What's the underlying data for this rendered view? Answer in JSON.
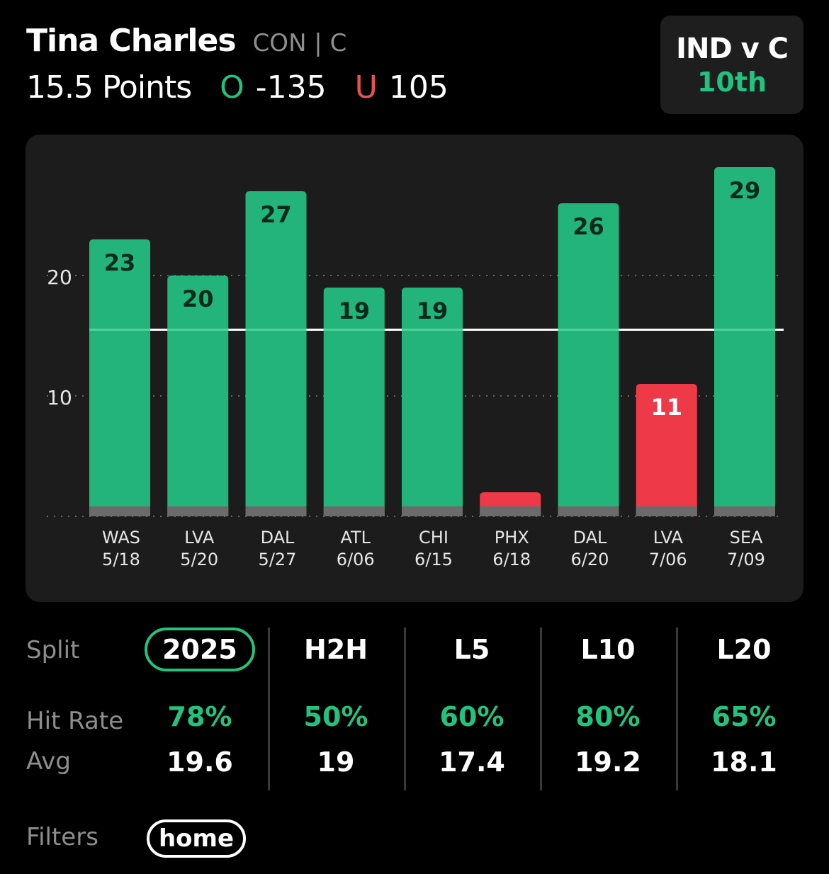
{
  "header": {
    "player_name": "Tina Charles",
    "player_meta": "CON | C",
    "prop_line": "15.5 Points",
    "over_mark": "O",
    "over_odds": "-135",
    "under_mark": "U",
    "under_odds": "105",
    "matchup": "IND v C",
    "matchup_rank": "10th"
  },
  "colors": {
    "over": "#22c37e",
    "under": "#ef4e55",
    "bar_hit": "#22b47a",
    "bar_miss": "#ee3a48"
  },
  "chart_data": {
    "type": "bar",
    "categories": [
      "WAS 5/18",
      "LVA 5/20",
      "DAL 5/27",
      "ATL 6/06",
      "CHI 6/15",
      "PHX 6/18",
      "DAL 6/20",
      "LVA 7/06",
      "SEA 7/09"
    ],
    "opponents": [
      "WAS",
      "LVA",
      "DAL",
      "ATL",
      "CHI",
      "PHX",
      "DAL",
      "LVA",
      "SEA"
    ],
    "dates": [
      "5/18",
      "5/20",
      "5/27",
      "6/06",
      "6/15",
      "6/18",
      "6/20",
      "7/06",
      "7/09"
    ],
    "values": [
      23,
      20,
      27,
      19,
      19,
      2,
      26,
      11,
      29
    ],
    "value_labels": [
      "23",
      "20",
      "27",
      "19",
      "19",
      "",
      "26",
      "11",
      "29"
    ],
    "outcome": [
      "over",
      "over",
      "over",
      "over",
      "over",
      "under",
      "over",
      "under",
      "over"
    ],
    "reference_line": 15.5,
    "yticks": [
      10,
      20
    ],
    "ylim": [
      0,
      31
    ],
    "grid": true
  },
  "splits": {
    "split_label": "Split",
    "hit_rate_label": "Hit Rate",
    "avg_label": "Avg",
    "columns": [
      {
        "name": "2025",
        "hit_rate": "78%",
        "avg": "19.6",
        "active": true
      },
      {
        "name": "H2H",
        "hit_rate": "50%",
        "avg": "19",
        "active": false
      },
      {
        "name": "L5",
        "hit_rate": "60%",
        "avg": "17.4",
        "active": false
      },
      {
        "name": "L10",
        "hit_rate": "80%",
        "avg": "19.2",
        "active": false
      },
      {
        "name": "L20",
        "hit_rate": "65%",
        "avg": "18.1",
        "active": false
      }
    ]
  },
  "filters": {
    "label": "Filters",
    "chips": [
      "home"
    ]
  }
}
